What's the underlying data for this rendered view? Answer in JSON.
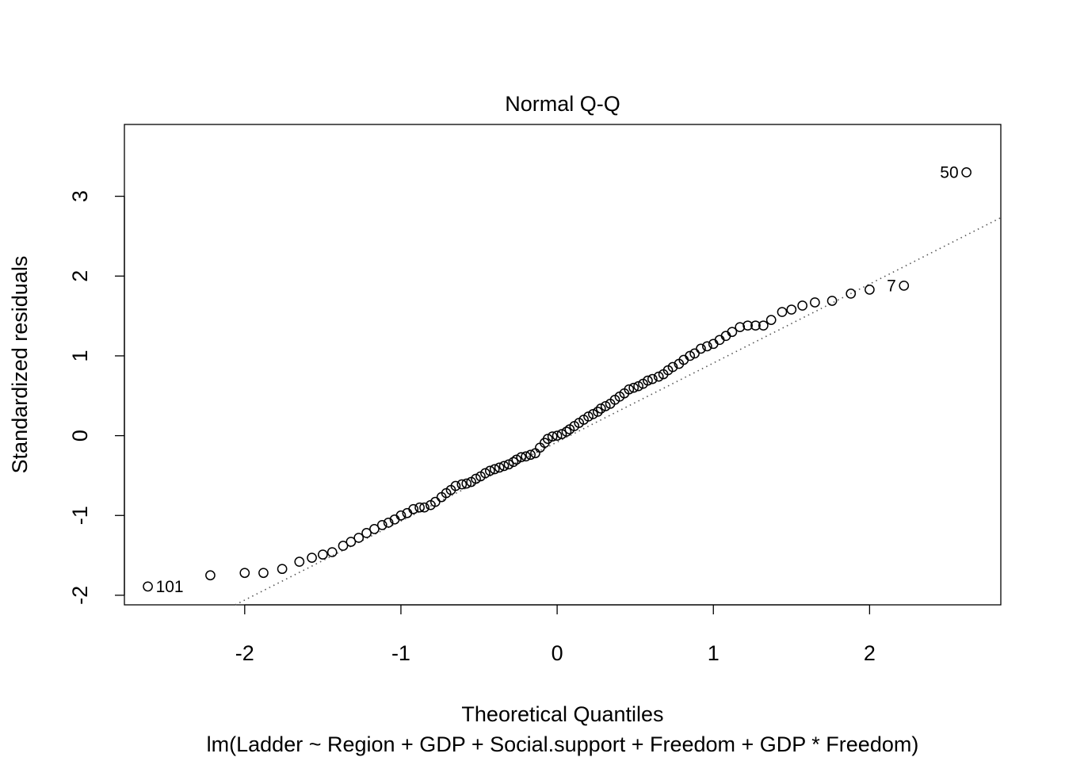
{
  "chart_data": {
    "type": "scatter",
    "title": "Normal Q-Q",
    "xlabel": "Theoretical Quantiles",
    "ylabel": "Standardized residuals",
    "subtitle": "lm(Ladder ~ Region + GDP + Social.support + Freedom + GDP * Freedom)",
    "xlim": [
      -2.77,
      2.84
    ],
    "ylim": [
      -2.12,
      3.9
    ],
    "x_ticks": [
      -2,
      -1,
      0,
      1,
      2
    ],
    "y_ticks": [
      -2,
      -1,
      0,
      1,
      2,
      3
    ],
    "grid": false,
    "legend": "none",
    "reference_line": {
      "style": "dotted",
      "slope": 0.99,
      "intercept": -0.08
    },
    "point_labels": [
      {
        "text": "50",
        "x": 2.62,
        "y": 3.3
      },
      {
        "text": "7",
        "x": 2.22,
        "y": 1.88
      },
      {
        "text": "101",
        "x": -2.62,
        "y": -1.89
      }
    ],
    "series": [
      {
        "x": [
          -2.62,
          -2.22,
          -2.0,
          -1.88,
          -1.76,
          -1.65,
          -1.57,
          -1.5,
          -1.44,
          -1.37,
          -1.32,
          -1.27,
          -1.22,
          -1.17,
          -1.12,
          -1.08,
          -1.04,
          -1.0,
          -0.96,
          -0.92,
          -0.88,
          -0.85,
          -0.81,
          -0.78,
          -0.74,
          -0.71,
          -0.68,
          -0.65,
          -0.61,
          -0.58,
          -0.55,
          -0.52,
          -0.49,
          -0.46,
          -0.43,
          -0.4,
          -0.37,
          -0.34,
          -0.31,
          -0.28,
          -0.26,
          -0.23,
          -0.2,
          -0.17,
          -0.14,
          -0.11,
          -0.08,
          -0.06,
          -0.03,
          0.0,
          0.03,
          0.06,
          0.08,
          0.11,
          0.14,
          0.17,
          0.2,
          0.23,
          0.26,
          0.28,
          0.31,
          0.34,
          0.37,
          0.4,
          0.43,
          0.46,
          0.49,
          0.52,
          0.55,
          0.58,
          0.61,
          0.65,
          0.68,
          0.71,
          0.74,
          0.78,
          0.81,
          0.85,
          0.88,
          0.92,
          0.96,
          1.0,
          1.04,
          1.08,
          1.12,
          1.17,
          1.22,
          1.27,
          1.32,
          1.37,
          1.44,
          1.5,
          1.57,
          1.65,
          1.76,
          1.88,
          2.0,
          2.22,
          2.62
        ],
        "y": [
          -1.89,
          -1.75,
          -1.72,
          -1.72,
          -1.67,
          -1.58,
          -1.53,
          -1.49,
          -1.46,
          -1.38,
          -1.33,
          -1.28,
          -1.22,
          -1.17,
          -1.12,
          -1.09,
          -1.05,
          -1.0,
          -0.97,
          -0.92,
          -0.9,
          -0.9,
          -0.87,
          -0.83,
          -0.77,
          -0.72,
          -0.68,
          -0.63,
          -0.61,
          -0.6,
          -0.58,
          -0.54,
          -0.51,
          -0.47,
          -0.44,
          -0.42,
          -0.4,
          -0.38,
          -0.36,
          -0.33,
          -0.3,
          -0.27,
          -0.26,
          -0.24,
          -0.22,
          -0.15,
          -0.09,
          -0.04,
          -0.01,
          0.0,
          0.02,
          0.05,
          0.08,
          0.12,
          0.16,
          0.2,
          0.24,
          0.27,
          0.3,
          0.34,
          0.37,
          0.4,
          0.45,
          0.49,
          0.53,
          0.58,
          0.6,
          0.62,
          0.65,
          0.69,
          0.71,
          0.74,
          0.77,
          0.82,
          0.86,
          0.9,
          0.95,
          1.0,
          1.03,
          1.09,
          1.12,
          1.15,
          1.2,
          1.25,
          1.3,
          1.36,
          1.38,
          1.38,
          1.38,
          1.45,
          1.55,
          1.58,
          1.63,
          1.67,
          1.69,
          1.78,
          1.83,
          1.88,
          3.3
        ]
      }
    ]
  }
}
